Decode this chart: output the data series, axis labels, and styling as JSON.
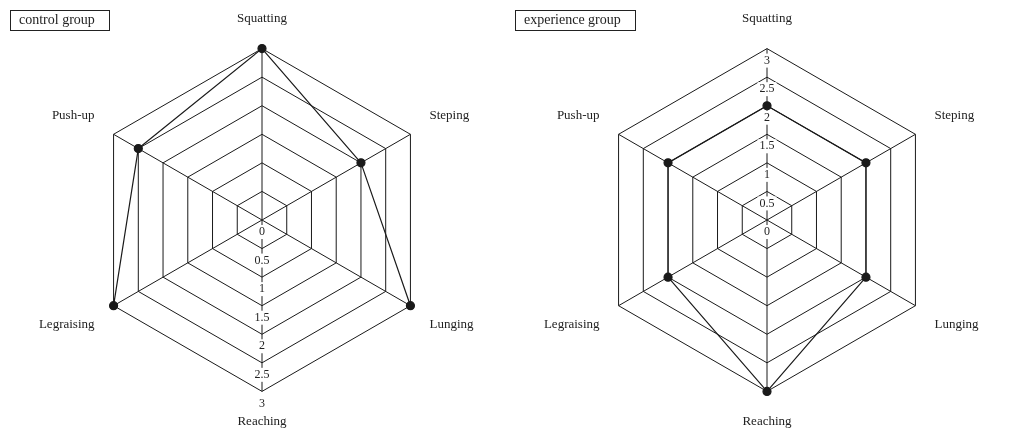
{
  "chart_data": [
    {
      "type": "radar",
      "title": "control group",
      "categories": [
        "Squatting",
        "Steping",
        "Lunging",
        "Reaching",
        "Legraising",
        "Push-up"
      ],
      "series": [
        {
          "color": "#1a1a1a",
          "values": [
            3,
            2,
            3,
            null,
            3,
            2.5
          ]
        }
      ],
      "ylim": [
        0,
        3
      ],
      "yticks": [
        0,
        0.5,
        1,
        1.5,
        2,
        2.5,
        3
      ],
      "grid": true,
      "marker": "circle"
    },
    {
      "type": "radar",
      "title": "experience group",
      "categories": [
        "Squatting",
        "Steping",
        "Lunging",
        "Reaching",
        "Legraising",
        "Push-up"
      ],
      "series": [
        {
          "color": "#1a1a1a",
          "values": [
            2,
            2,
            2,
            3,
            2,
            2
          ]
        }
      ],
      "ylim": [
        0,
        3
      ],
      "yticks": [
        0,
        0.5,
        1,
        1.5,
        2,
        2.5,
        3
      ],
      "grid": true,
      "marker": "circle"
    }
  ]
}
